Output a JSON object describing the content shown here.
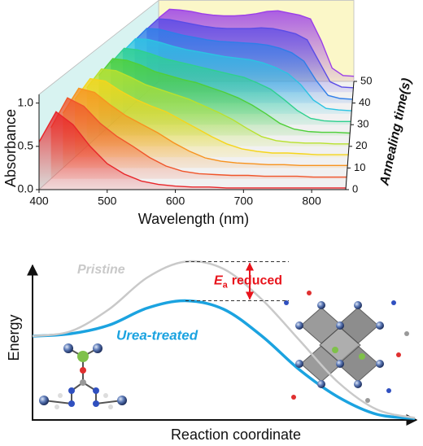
{
  "chart_data": [
    {
      "type": "waterfall",
      "xlabel": "Wavelength (nm)",
      "ylabel": "Absorbance",
      "zlabel": "Annealing time(s)",
      "xlim": [
        400,
        850
      ],
      "xticks": [
        400,
        500,
        600,
        700,
        800
      ],
      "ylim": [
        0,
        1.1
      ],
      "yticks": [
        {
          "value": 0,
          "label": "0.0"
        },
        {
          "value": 0.5,
          "label": "0.5"
        },
        {
          "value": 1,
          "label": "1.0"
        }
      ],
      "zlim": [
        0,
        50
      ],
      "zticks": [
        0,
        10,
        20,
        30,
        40,
        50
      ],
      "x": [
        400,
        425,
        450,
        475,
        500,
        525,
        550,
        575,
        600,
        625,
        650,
        675,
        700,
        725,
        750,
        775,
        800,
        825,
        850
      ],
      "series": [
        {
          "z": 0,
          "color": "#e8262a",
          "values": [
            0.55,
            0.9,
            0.75,
            0.5,
            0.3,
            0.18,
            0.1,
            0.06,
            0.04,
            0.03,
            0.03,
            0.02,
            0.02,
            0.02,
            0.02,
            0.02,
            0.02,
            0.02,
            0.02
          ]
        },
        {
          "z": 5,
          "color": "#f0552a",
          "values": [
            0.6,
            0.95,
            0.85,
            0.65,
            0.5,
            0.38,
            0.25,
            0.15,
            0.09,
            0.06,
            0.05,
            0.04,
            0.04,
            0.03,
            0.03,
            0.03,
            0.02,
            0.02,
            0.02
          ]
        },
        {
          "z": 10,
          "color": "#f7931f",
          "values": [
            0.65,
            0.95,
            0.9,
            0.75,
            0.62,
            0.52,
            0.42,
            0.3,
            0.2,
            0.12,
            0.08,
            0.06,
            0.05,
            0.04,
            0.04,
            0.03,
            0.03,
            0.03,
            0.03
          ]
        },
        {
          "z": 15,
          "color": "#f5d51c",
          "values": [
            0.7,
            0.95,
            0.92,
            0.8,
            0.7,
            0.62,
            0.55,
            0.45,
            0.35,
            0.25,
            0.16,
            0.1,
            0.07,
            0.05,
            0.05,
            0.04,
            0.03,
            0.03,
            0.03
          ]
        },
        {
          "z": 20,
          "color": "#b8e12e",
          "values": [
            0.72,
            0.95,
            0.93,
            0.85,
            0.76,
            0.7,
            0.64,
            0.58,
            0.5,
            0.42,
            0.33,
            0.22,
            0.12,
            0.07,
            0.05,
            0.04,
            0.04,
            0.03,
            0.03
          ]
        },
        {
          "z": 25,
          "color": "#4fcf3a",
          "values": [
            0.75,
            0.96,
            0.94,
            0.88,
            0.8,
            0.75,
            0.7,
            0.66,
            0.6,
            0.54,
            0.47,
            0.38,
            0.27,
            0.15,
            0.08,
            0.05,
            0.04,
            0.04,
            0.03
          ]
        },
        {
          "z": 30,
          "color": "#2fd08f",
          "values": [
            0.78,
            0.97,
            0.95,
            0.9,
            0.84,
            0.8,
            0.76,
            0.72,
            0.68,
            0.64,
            0.6,
            0.53,
            0.45,
            0.32,
            0.18,
            0.08,
            0.05,
            0.04,
            0.04
          ]
        },
        {
          "z": 35,
          "color": "#2cc3e2",
          "values": [
            0.8,
            0.97,
            0.96,
            0.92,
            0.87,
            0.83,
            0.8,
            0.77,
            0.74,
            0.72,
            0.7,
            0.66,
            0.6,
            0.52,
            0.38,
            0.18,
            0.07,
            0.05,
            0.04
          ]
        },
        {
          "z": 40,
          "color": "#2f7ee8",
          "values": [
            0.82,
            0.98,
            0.97,
            0.93,
            0.89,
            0.86,
            0.83,
            0.81,
            0.8,
            0.79,
            0.78,
            0.76,
            0.72,
            0.66,
            0.55,
            0.3,
            0.1,
            0.06,
            0.05
          ]
        },
        {
          "z": 45,
          "color": "#5a4ce6",
          "values": [
            0.84,
            0.98,
            0.97,
            0.94,
            0.91,
            0.88,
            0.86,
            0.85,
            0.85,
            0.85,
            0.86,
            0.85,
            0.82,
            0.78,
            0.7,
            0.42,
            0.14,
            0.07,
            0.06
          ]
        },
        {
          "z": 50,
          "color": "#9b3fe8",
          "values": [
            0.86,
            0.98,
            0.97,
            0.95,
            0.92,
            0.9,
            0.89,
            0.89,
            0.9,
            0.92,
            0.95,
            0.96,
            0.93,
            0.9,
            0.85,
            0.55,
            0.18,
            0.08,
            0.07
          ]
        }
      ]
    },
    {
      "type": "line",
      "xlabel": "Reaction coordinate",
      "ylabel": "Energy",
      "xlim": [
        0,
        10
      ],
      "ylim": [
        0,
        13
      ],
      "x": [
        0,
        1,
        2,
        3,
        4,
        5,
        6,
        7,
        8,
        9,
        10
      ],
      "series": [
        {
          "name": "Pristine",
          "color": "#c9c9c9",
          "values": [
            6.8,
            7.2,
            9.0,
            11.6,
            12.9,
            12.3,
            9.8,
            6.4,
            3.0,
            0.8,
            0.1
          ]
        },
        {
          "name": "Urea-treated",
          "color": "#1ba3e0",
          "values": [
            6.8,
            7.0,
            7.7,
            9.1,
            9.7,
            9.0,
            6.8,
            4.0,
            1.8,
            0.4,
            0.05
          ]
        }
      ],
      "annotation": {
        "symbol": "E",
        "subscript": "a",
        "text": "reduced",
        "color": "#e8141c"
      }
    }
  ]
}
